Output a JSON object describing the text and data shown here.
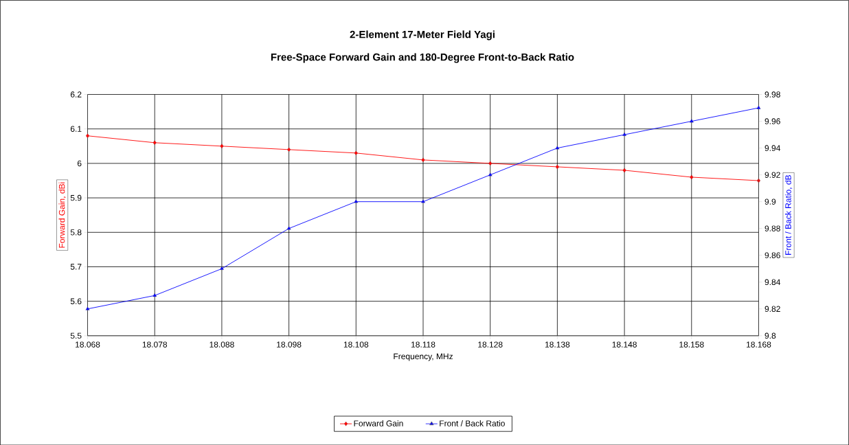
{
  "chart_data": {
    "type": "line",
    "title": "2-Element 17-Meter Field Yagi",
    "subtitle": "Free-Space Forward Gain and 180-Degree Front-to-Back Ratio",
    "xlabel": "Frequency, MHz",
    "ylabel": "Forward Gain, dBi",
    "y2label": "Front / Back Ratio, dB",
    "x": [
      18.068,
      18.078,
      18.088,
      18.098,
      18.108,
      18.118,
      18.128,
      18.138,
      18.148,
      18.158,
      18.168
    ],
    "series": [
      {
        "name": "Forward Gain",
        "color": "#ff0000",
        "marker": "diamond",
        "values": [
          6.08,
          6.06,
          6.05,
          6.04,
          6.03,
          6.01,
          6.0,
          5.99,
          5.98,
          5.96,
          5.95
        ]
      },
      {
        "name": "Front / Back Ratio",
        "color": "#0000ff",
        "marker": "triangle",
        "axis": "y2",
        "values": [
          9.82,
          9.83,
          9.85,
          9.88,
          9.9,
          9.9,
          9.92,
          9.94,
          9.95,
          9.96,
          9.97
        ]
      }
    ],
    "xlim": [
      18.068,
      18.168
    ],
    "xticks": [
      18.068,
      18.078,
      18.088,
      18.098,
      18.108,
      18.118,
      18.128,
      18.138,
      18.148,
      18.158,
      18.168
    ],
    "ylim": [
      5.5,
      6.2
    ],
    "yticks": [
      5.5,
      5.6,
      5.7,
      5.8,
      5.9,
      6,
      6.1,
      6.2
    ],
    "y2lim": [
      9.8,
      9.98
    ],
    "y2ticks": [
      9.8,
      9.82,
      9.84,
      9.86,
      9.88,
      9.9,
      9.92,
      9.94,
      9.96,
      9.98
    ],
    "grid": true,
    "legend": "bottom"
  }
}
